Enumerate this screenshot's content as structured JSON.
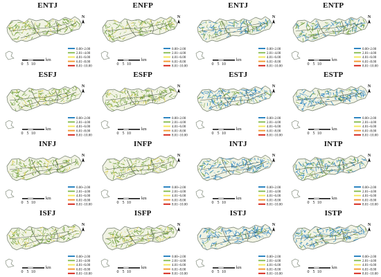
{
  "panels": [
    {
      "title": "ENTJ",
      "style": "green"
    },
    {
      "title": "ENFP",
      "style": "green"
    },
    {
      "title": "ENTJ",
      "style": "mixed"
    },
    {
      "title": "ENTP",
      "style": "mixed"
    },
    {
      "title": "ESFJ",
      "style": "green"
    },
    {
      "title": "ESFP",
      "style": "green"
    },
    {
      "title": "ESTJ",
      "style": "blue"
    },
    {
      "title": "ESTP",
      "style": "blue"
    },
    {
      "title": "INFJ",
      "style": "green"
    },
    {
      "title": "INFP",
      "style": "green"
    },
    {
      "title": "INTJ",
      "style": "blue"
    },
    {
      "title": "INTP",
      "style": "mixed"
    },
    {
      "title": "ISFJ",
      "style": "green"
    },
    {
      "title": "ISFP",
      "style": "green"
    },
    {
      "title": "ISTJ",
      "style": "blue"
    },
    {
      "title": "ISTP",
      "style": "blue"
    }
  ],
  "legend": {
    "classes": [
      {
        "label": "0.00~2.00",
        "color": "#2e86c1"
      },
      {
        "label": "2.01~4.00",
        "color": "#8dbf5a"
      },
      {
        "label": "4.01~6.00",
        "color": "#f2e85c"
      },
      {
        "label": "6.01~8.00",
        "color": "#f39c34"
      },
      {
        "label": "8.01~10.00",
        "color": "#d62b1f"
      }
    ]
  },
  "scalebar": {
    "ticks": [
      "0",
      "5",
      "10"
    ],
    "unit": "km"
  },
  "north_label": "N",
  "colors": {
    "land": "#f1f3e4",
    "boundary": "#6f7a68",
    "network_green": "#6f9f3b",
    "network_yellow": "#d9cf4f",
    "network_blue": "#2e86c1"
  }
}
